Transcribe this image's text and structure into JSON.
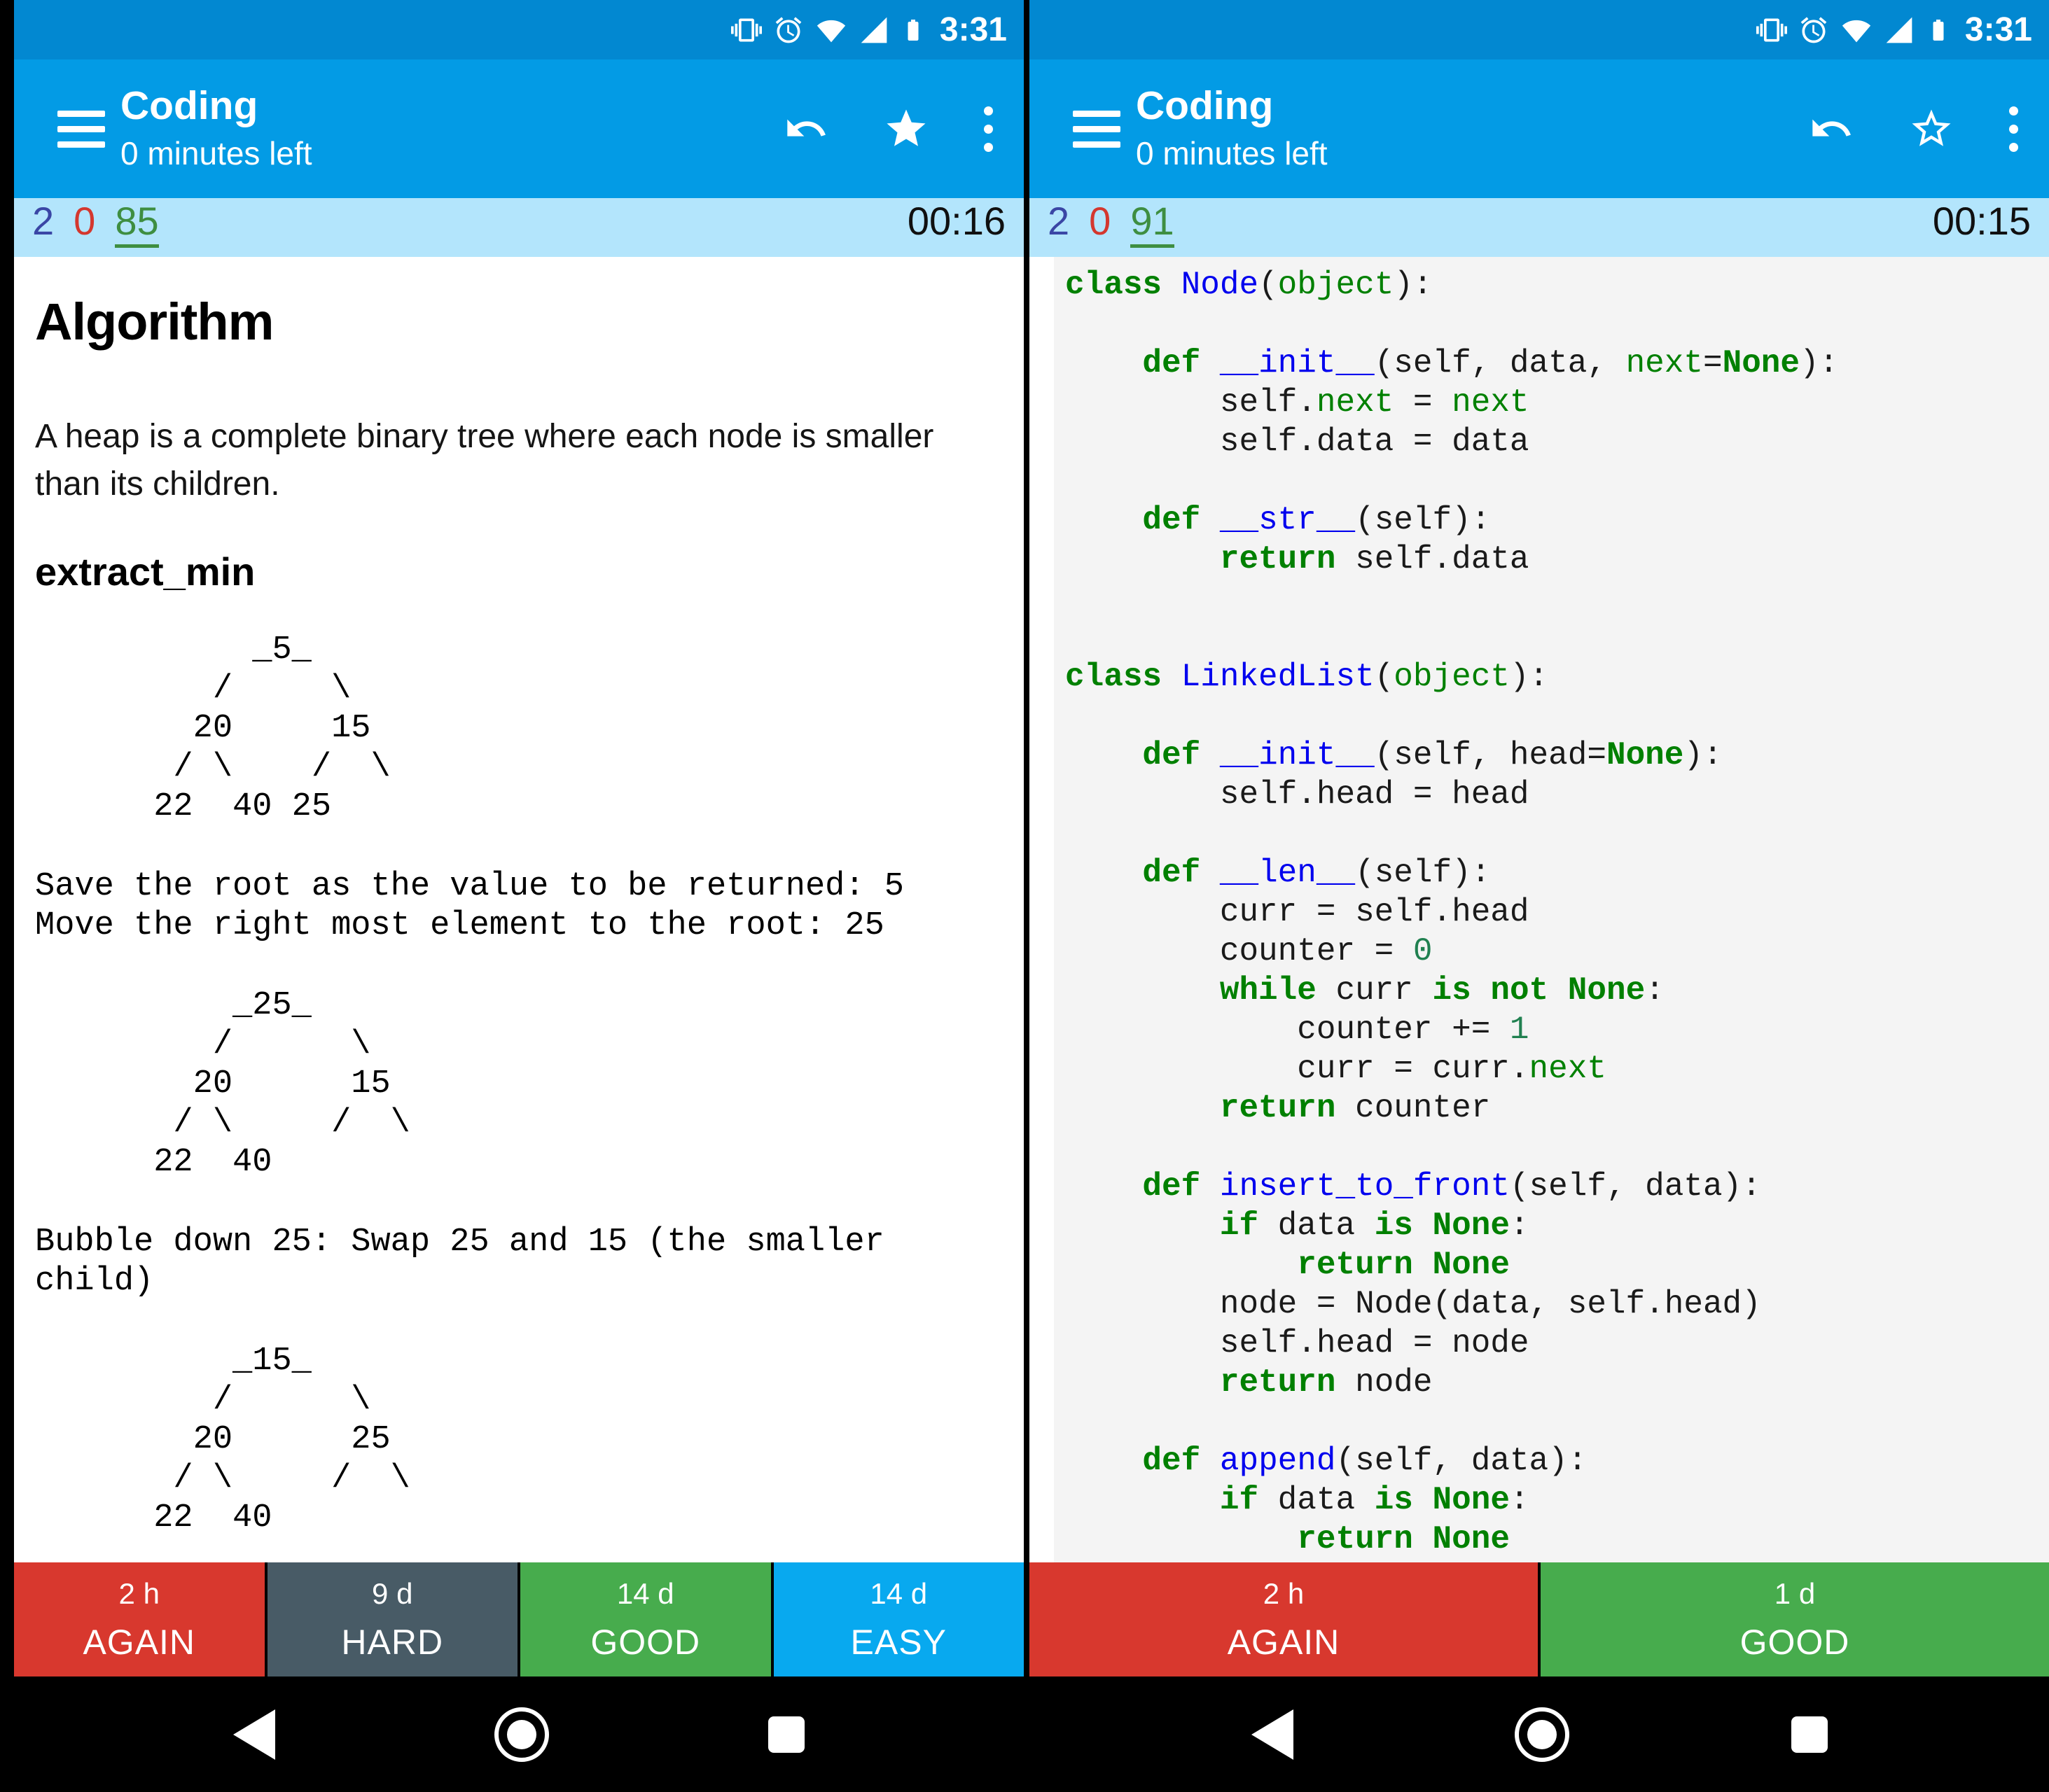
{
  "status_bar": {
    "time": "3:31"
  },
  "app_bar": {
    "title": "Coding",
    "subtitle": "0 minutes left"
  },
  "colors": {
    "status_bar": "#0288d1",
    "app_bar": "#039be5",
    "counter_bar": "#b3e5fc",
    "new_count": "#3a46a5",
    "learning_count": "#d4372e",
    "review_count": "#3e8e41",
    "again_button": "#d8382e",
    "hard_button": "#485b66",
    "good_button": "#47ac4d",
    "easy_button": "#08a9ef",
    "code_background": "#f4f4f4",
    "code_keyword": "#008000",
    "code_name": "#0000ee",
    "code_builtin": "#008000",
    "code_number": "#208050"
  },
  "left": {
    "counts": {
      "new": "2",
      "learning": "0",
      "review": "85"
    },
    "timer": "00:16",
    "card": {
      "blocks": [
        {
          "type": "h1",
          "text": "Algorithm"
        },
        {
          "type": "p",
          "text": "A heap is a complete binary tree where each node is smaller than its children."
        },
        {
          "type": "h2",
          "text": "extract_min"
        },
        {
          "type": "tree",
          "text": "           _5_\n         /     \\\n        20     15\n       / \\    /  \\\n      22  40 25"
        },
        {
          "type": "mono",
          "text": "Save the root as the value to be returned: 5\nMove the right most element to the root: 25"
        },
        {
          "type": "tree",
          "text": "          _25_\n         /      \\\n        20      15\n       / \\     /  \\\n      22  40"
        },
        {
          "type": "mono",
          "text": "Bubble down 25: Swap 25 and 15 (the smaller child)"
        },
        {
          "type": "tree",
          "text": "          _15_\n         /      \\\n        20      25\n       / \\     /  \\\n      22  40"
        }
      ]
    },
    "answers": [
      {
        "time": "2 h",
        "label": "AGAIN",
        "color": "#d8382e"
      },
      {
        "time": "9 d",
        "label": "HARD",
        "color": "#485b66"
      },
      {
        "time": "14 d",
        "label": "GOOD",
        "color": "#47ac4d"
      },
      {
        "time": "14 d",
        "label": "EASY",
        "color": "#08a9ef"
      }
    ]
  },
  "right": {
    "counts": {
      "new": "2",
      "learning": "0",
      "review": "91"
    },
    "timer": "00:15",
    "code": {
      "lines": [
        [
          [
            "k",
            "class"
          ],
          [
            "p",
            " "
          ],
          [
            "n",
            "Node"
          ],
          [
            "p",
            "("
          ],
          [
            "b",
            "object"
          ],
          [
            "p",
            "):"
          ]
        ],
        [],
        [
          [
            "p",
            "    "
          ],
          [
            "k",
            "def"
          ],
          [
            "p",
            " "
          ],
          [
            "n",
            "__init__"
          ],
          [
            "p",
            "(self, data, "
          ],
          [
            "b",
            "next"
          ],
          [
            "p",
            "="
          ],
          [
            "k",
            "None"
          ],
          [
            "p",
            "):"
          ]
        ],
        [
          [
            "p",
            "        self."
          ],
          [
            "b",
            "next"
          ],
          [
            "p",
            " = "
          ],
          [
            "b",
            "next"
          ]
        ],
        [
          [
            "p",
            "        self.data = data"
          ]
        ],
        [],
        [
          [
            "p",
            "    "
          ],
          [
            "k",
            "def"
          ],
          [
            "p",
            " "
          ],
          [
            "n",
            "__str__"
          ],
          [
            "p",
            "(self):"
          ]
        ],
        [
          [
            "p",
            "        "
          ],
          [
            "k",
            "return"
          ],
          [
            "p",
            " self.data"
          ]
        ],
        [],
        [],
        [
          [
            "k",
            "class"
          ],
          [
            "p",
            " "
          ],
          [
            "n",
            "LinkedList"
          ],
          [
            "p",
            "("
          ],
          [
            "b",
            "object"
          ],
          [
            "p",
            "):"
          ]
        ],
        [],
        [
          [
            "p",
            "    "
          ],
          [
            "k",
            "def"
          ],
          [
            "p",
            " "
          ],
          [
            "n",
            "__init__"
          ],
          [
            "p",
            "(self, head="
          ],
          [
            "k",
            "None"
          ],
          [
            "p",
            "):"
          ]
        ],
        [
          [
            "p",
            "        self.head = head"
          ]
        ],
        [],
        [
          [
            "p",
            "    "
          ],
          [
            "k",
            "def"
          ],
          [
            "p",
            " "
          ],
          [
            "n",
            "__len__"
          ],
          [
            "p",
            "(self):"
          ]
        ],
        [
          [
            "p",
            "        curr = self.head"
          ]
        ],
        [
          [
            "p",
            "        counter = "
          ],
          [
            "num",
            "0"
          ]
        ],
        [
          [
            "p",
            "        "
          ],
          [
            "k",
            "while"
          ],
          [
            "p",
            " curr "
          ],
          [
            "k",
            "is"
          ],
          [
            "p",
            " "
          ],
          [
            "k",
            "not"
          ],
          [
            "p",
            " "
          ],
          [
            "k",
            "None"
          ],
          [
            "p",
            ":"
          ]
        ],
        [
          [
            "p",
            "            counter += "
          ],
          [
            "num",
            "1"
          ]
        ],
        [
          [
            "p",
            "            curr = curr."
          ],
          [
            "b",
            "next"
          ]
        ],
        [
          [
            "p",
            "        "
          ],
          [
            "k",
            "return"
          ],
          [
            "p",
            " counter"
          ]
        ],
        [],
        [
          [
            "p",
            "    "
          ],
          [
            "k",
            "def"
          ],
          [
            "p",
            " "
          ],
          [
            "n",
            "insert_to_front"
          ],
          [
            "p",
            "(self, data):"
          ]
        ],
        [
          [
            "p",
            "        "
          ],
          [
            "k",
            "if"
          ],
          [
            "p",
            " data "
          ],
          [
            "k",
            "is"
          ],
          [
            "p",
            " "
          ],
          [
            "k",
            "None"
          ],
          [
            "p",
            ":"
          ]
        ],
        [
          [
            "p",
            "            "
          ],
          [
            "k",
            "return"
          ],
          [
            "p",
            " "
          ],
          [
            "k",
            "None"
          ]
        ],
        [
          [
            "p",
            "        node = Node(data, self.head)"
          ]
        ],
        [
          [
            "p",
            "        self.head = node"
          ]
        ],
        [
          [
            "p",
            "        "
          ],
          [
            "k",
            "return"
          ],
          [
            "p",
            " node"
          ]
        ],
        [],
        [
          [
            "p",
            "    "
          ],
          [
            "k",
            "def"
          ],
          [
            "p",
            " "
          ],
          [
            "n",
            "append"
          ],
          [
            "p",
            "(self, data):"
          ]
        ],
        [
          [
            "p",
            "        "
          ],
          [
            "k",
            "if"
          ],
          [
            "p",
            " data "
          ],
          [
            "k",
            "is"
          ],
          [
            "p",
            " "
          ],
          [
            "k",
            "None"
          ],
          [
            "p",
            ":"
          ]
        ],
        [
          [
            "p",
            "            "
          ],
          [
            "k",
            "return"
          ],
          [
            "p",
            " "
          ],
          [
            "k",
            "None"
          ]
        ]
      ]
    },
    "answers": [
      {
        "time": "2 h",
        "label": "AGAIN",
        "color": "#d8382e"
      },
      {
        "time": "1 d",
        "label": "GOOD",
        "color": "#47ac4d"
      }
    ]
  }
}
